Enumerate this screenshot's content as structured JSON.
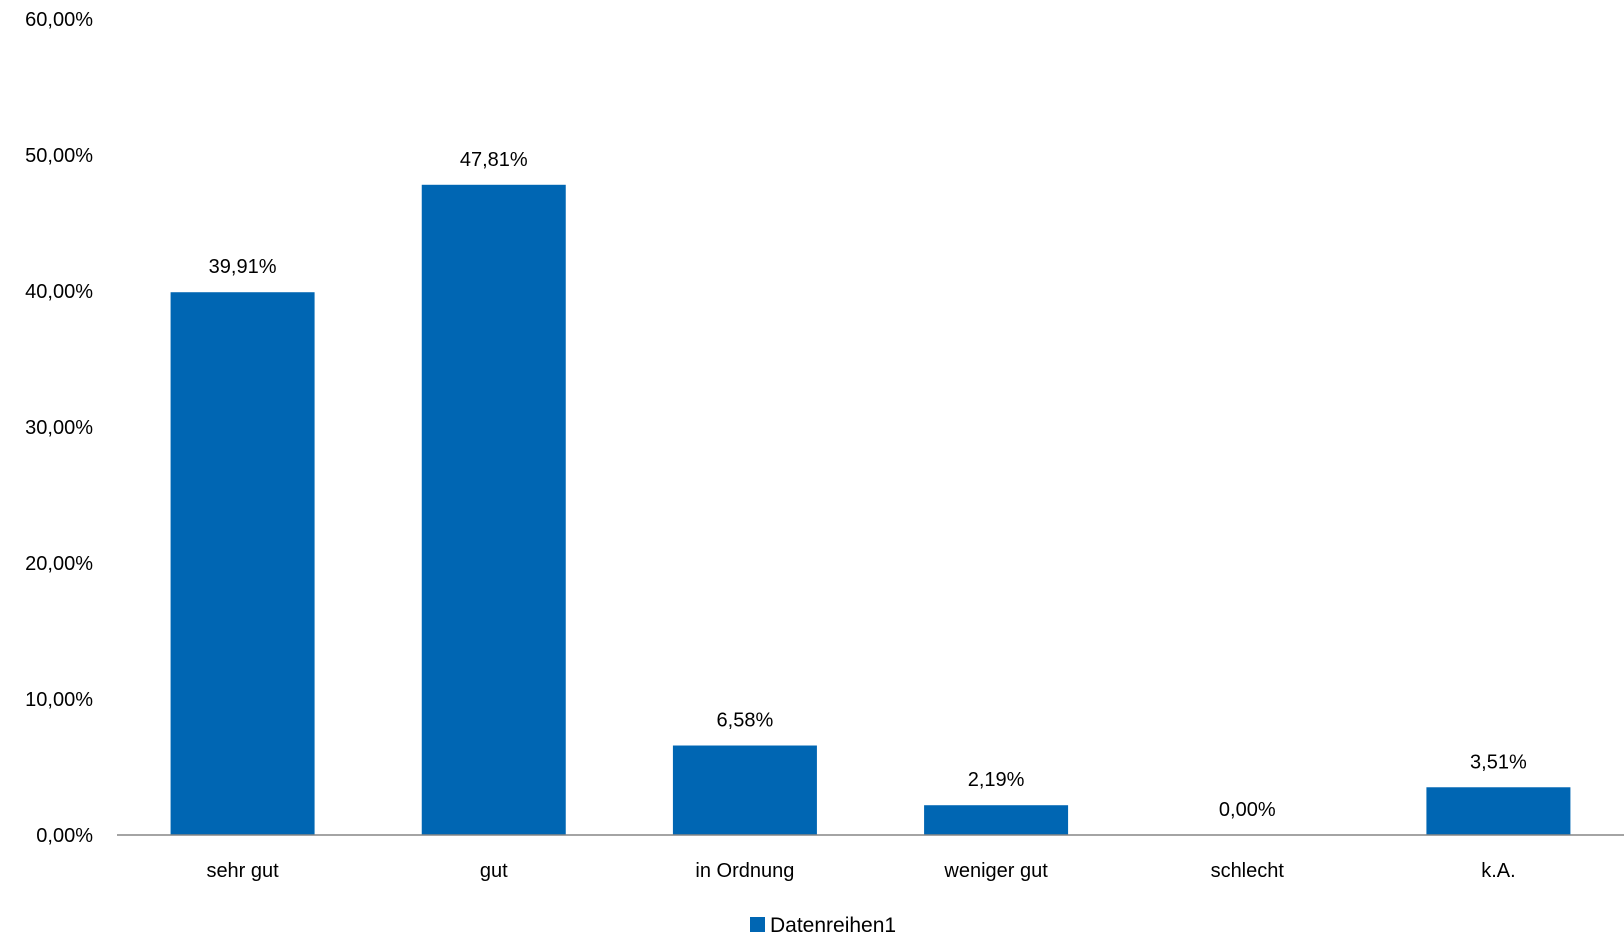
{
  "chart_data": {
    "type": "bar",
    "categories": [
      "sehr gut",
      "gut",
      "in Ordnung",
      "weniger gut",
      "schlecht",
      "k.A."
    ],
    "series": [
      {
        "name": "Datenreihen1",
        "values": [
          39.91,
          47.81,
          6.58,
          2.19,
          0.0,
          3.51
        ],
        "data_labels": [
          "39,91%",
          "47,81%",
          "6,58%",
          "2,19%",
          "0,00%",
          "3,51%"
        ],
        "color": "#0066B3"
      }
    ],
    "ylim": [
      0,
      60
    ],
    "yticks": [
      0,
      10,
      20,
      30,
      40,
      50,
      60
    ],
    "ytick_labels": [
      "0,00%",
      "10,00%",
      "20,00%",
      "30,00%",
      "40,00%",
      "50,00%",
      "60,00%"
    ],
    "grid": false,
    "legend": {
      "position": "bottom",
      "entries": [
        "Datenreihen1"
      ]
    },
    "axis_color": "#868686"
  }
}
